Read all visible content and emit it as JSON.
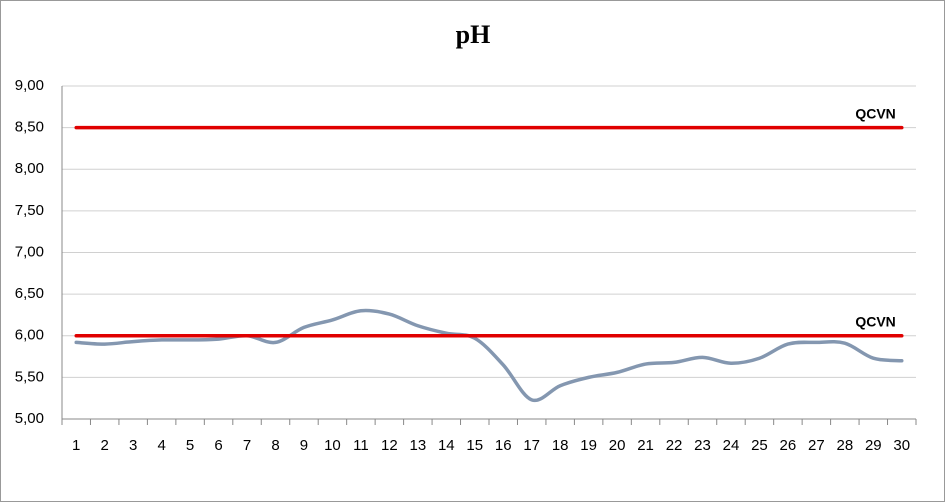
{
  "chart_data": {
    "type": "line",
    "title": "pH",
    "categories": [
      "1",
      "2",
      "3",
      "4",
      "5",
      "6",
      "7",
      "8",
      "9",
      "10",
      "11",
      "12",
      "13",
      "14",
      "15",
      "16",
      "17",
      "18",
      "19",
      "20",
      "21",
      "22",
      "23",
      "24",
      "25",
      "26",
      "27",
      "28",
      "29",
      "30"
    ],
    "series": [
      {
        "color": "#8497b0",
        "smooth": true,
        "values": [
          5.92,
          5.9,
          5.93,
          5.95,
          5.95,
          5.96,
          6.0,
          5.92,
          6.1,
          6.19,
          6.3,
          6.26,
          6.12,
          6.03,
          5.97,
          5.65,
          5.23,
          5.4,
          5.5,
          5.56,
          5.66,
          5.68,
          5.74,
          5.67,
          5.73,
          5.9,
          5.92,
          5.91,
          5.73,
          5.7
        ]
      },
      {
        "name": "QCVN",
        "color": "#e00000",
        "values": [
          8.5,
          8.5,
          8.5,
          8.5,
          8.5,
          8.5,
          8.5,
          8.5,
          8.5,
          8.5,
          8.5,
          8.5,
          8.5,
          8.5,
          8.5,
          8.5,
          8.5,
          8.5,
          8.5,
          8.5,
          8.5,
          8.5,
          8.5,
          8.5,
          8.5,
          8.5,
          8.5,
          8.5,
          8.5,
          8.5
        ]
      },
      {
        "name": "QCVN",
        "color": "#e00000",
        "values": [
          6,
          6,
          6,
          6,
          6,
          6,
          6,
          6,
          6,
          6,
          6,
          6,
          6,
          6,
          6,
          6,
          6,
          6,
          6,
          6,
          6,
          6,
          6,
          6,
          6,
          6,
          6,
          6,
          6,
          6
        ]
      }
    ],
    "ylim": [
      5,
      9
    ],
    "yticks": [
      {
        "value": 5,
        "label": "5,00"
      },
      {
        "value": 5.5,
        "label": "5,50"
      },
      {
        "value": 6,
        "label": "6,00"
      },
      {
        "value": 6.5,
        "label": "6,50"
      },
      {
        "value": 7,
        "label": "7,00"
      },
      {
        "value": 7.5,
        "label": "7,50"
      },
      {
        "value": 8,
        "label": "8,00"
      },
      {
        "value": 8.5,
        "label": "8,50"
      },
      {
        "value": 9,
        "label": "9,00"
      }
    ],
    "grid": true
  }
}
